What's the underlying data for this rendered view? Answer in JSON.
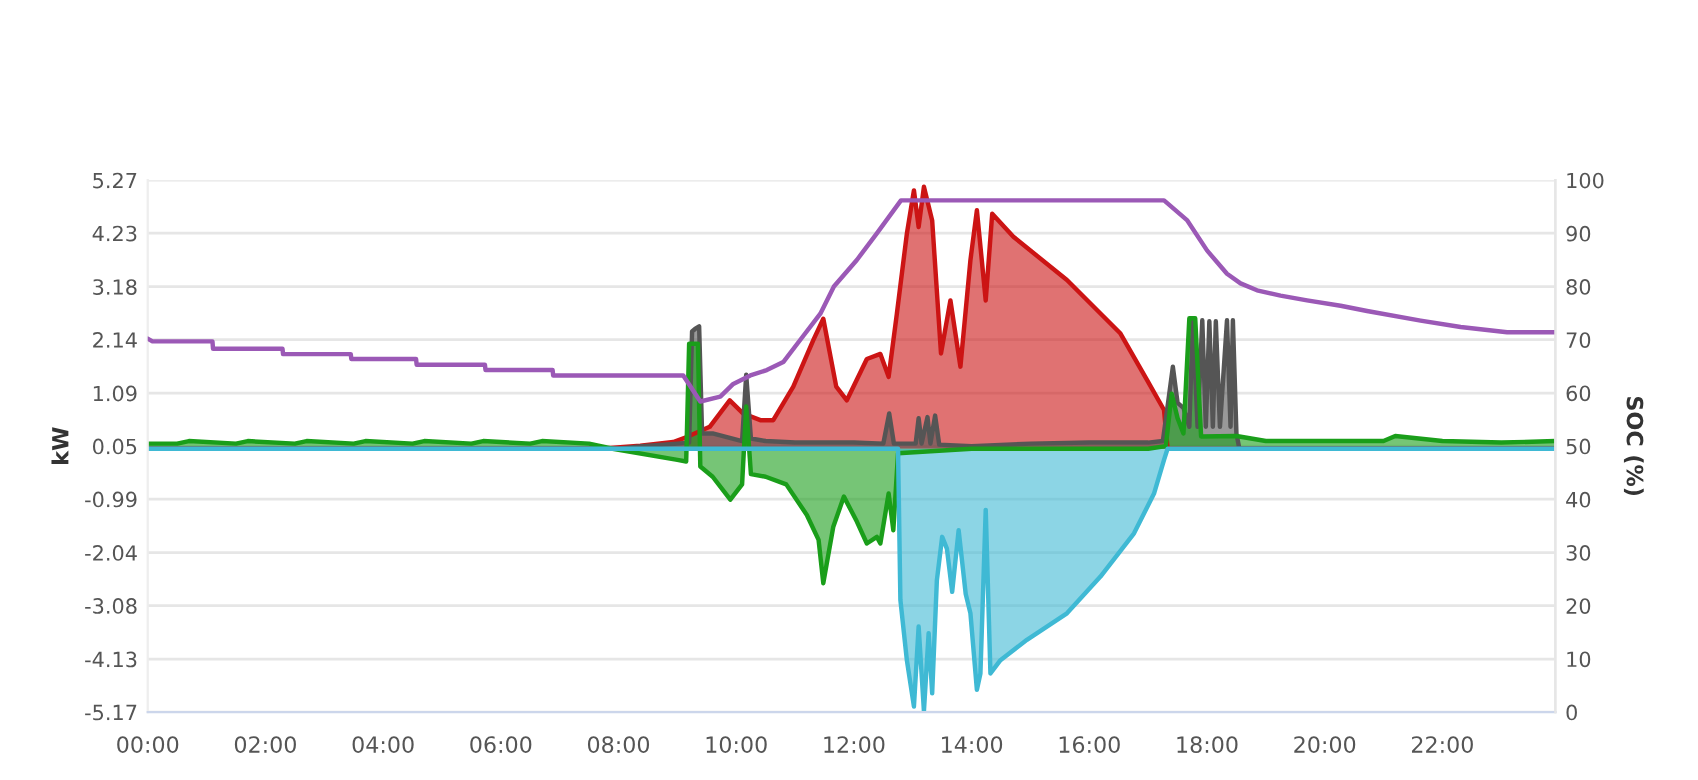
{
  "chart_data": {
    "type": "area",
    "ylabel": "kW",
    "y2label": "SOC (%)",
    "xlim": [
      0,
      23.92
    ],
    "xticks": [
      {
        "value": 0,
        "label": "00:00"
      },
      {
        "value": 2,
        "label": "02:00"
      },
      {
        "value": 4,
        "label": "04:00"
      },
      {
        "value": 6,
        "label": "06:00"
      },
      {
        "value": 8,
        "label": "08:00"
      },
      {
        "value": 10,
        "label": "10:00"
      },
      {
        "value": 12,
        "label": "12:00"
      },
      {
        "value": 14,
        "label": "14:00"
      },
      {
        "value": 16,
        "label": "16:00"
      },
      {
        "value": 18,
        "label": "18:00"
      },
      {
        "value": 20,
        "label": "20:00"
      },
      {
        "value": 22,
        "label": "22:00"
      }
    ],
    "ylim": [
      -5.17,
      5.27
    ],
    "yticks": [
      5.27,
      4.23,
      3.18,
      2.14,
      1.09,
      0.05,
      -0.99,
      -2.04,
      -3.08,
      -4.13,
      -5.17
    ],
    "y2lim": [
      0,
      100
    ],
    "y2ticks": [
      0,
      10,
      20,
      30,
      40,
      50,
      60,
      70,
      80,
      90,
      100
    ],
    "grid": "y",
    "legend": false,
    "series": [
      {
        "color": "#cc1414",
        "x": [
          0,
          7.69,
          8.37,
          8.93,
          9.16,
          9.55,
          9.89,
          10.12,
          10.41,
          10.63,
          10.97,
          11.31,
          11.48,
          11.7,
          11.88,
          12.22,
          12.45,
          12.59,
          12.73,
          12.9,
          13.02,
          13.1,
          13.19,
          13.33,
          13.48,
          13.64,
          13.81,
          13.98,
          14.09,
          14.24,
          14.35,
          14.71,
          15.62,
          16.53,
          16.98,
          17.27,
          17.33,
          23.92
        ],
        "values": [
          0,
          0,
          0.06,
          0.13,
          0.23,
          0.43,
          0.95,
          0.69,
          0.56,
          0.56,
          1.22,
          2.13,
          2.55,
          1.22,
          0.95,
          1.76,
          1.86,
          1.41,
          2.65,
          4.22,
          5.07,
          4.35,
          5.14,
          4.48,
          1.87,
          2.91,
          1.61,
          3.7,
          4.68,
          2.91,
          4.61,
          4.16,
          3.31,
          2.26,
          1.35,
          0.76,
          0,
          0
        ]
      },
      {
        "color": "#555555",
        "x": [
          0,
          8.0,
          8.4,
          9.0,
          9.2,
          9.25,
          9.3,
          9.37,
          9.42,
          9.6,
          10.1,
          10.17,
          10.25,
          10.5,
          11.0,
          12.0,
          12.5,
          12.6,
          12.68,
          13.05,
          13.1,
          13.15,
          13.25,
          13.3,
          13.38,
          13.45,
          14.0,
          15.0,
          16.0,
          17.0,
          17.25,
          17.35,
          17.42,
          17.5,
          17.6,
          17.7,
          17.76,
          17.84,
          17.92,
          17.98,
          18.04,
          18.1,
          18.15,
          18.22,
          18.34,
          18.4,
          18.44,
          18.5,
          18.55,
          23.92
        ],
        "values": [
          0,
          0,
          0.05,
          0.1,
          0.12,
          2.3,
          2.35,
          2.4,
          0.3,
          0.3,
          0.15,
          1.45,
          0.2,
          0.15,
          0.12,
          0.12,
          0.1,
          0.69,
          0.1,
          0.1,
          0.6,
          0.1,
          0.62,
          0.1,
          0.65,
          0.08,
          0.05,
          0.1,
          0.12,
          0.12,
          0.15,
          1.0,
          1.61,
          0.9,
          0.8,
          0.43,
          2.52,
          0.43,
          2.52,
          0.43,
          2.5,
          0.43,
          2.5,
          0.43,
          2.52,
          0.43,
          2.52,
          0.3,
          0,
          0
        ]
      },
      {
        "color": "#1a9e1a",
        "x": [
          0,
          0.5,
          0.7,
          1.5,
          1.7,
          2.5,
          2.7,
          3.5,
          3.7,
          4.5,
          4.7,
          5.5,
          5.7,
          6.5,
          6.7,
          7.5,
          7.9,
          9.0,
          9.15,
          9.2,
          9.35,
          9.39,
          9.6,
          9.9,
          10.1,
          10.17,
          10.25,
          10.5,
          10.85,
          11.2,
          11.4,
          11.48,
          11.65,
          11.83,
          12.05,
          12.22,
          12.39,
          12.45,
          12.59,
          12.67,
          12.75,
          14.0,
          17.0,
          17.3,
          17.4,
          17.5,
          17.6,
          17.7,
          17.8,
          17.9,
          18.5,
          19.0,
          20.0,
          21.0,
          21.2,
          22.0,
          23.0,
          23.92
        ],
        "values": [
          0.1,
          0.1,
          0.15,
          0.1,
          0.15,
          0.1,
          0.15,
          0.1,
          0.15,
          0.1,
          0.15,
          0.1,
          0.15,
          0.1,
          0.15,
          0.1,
          0.0,
          -0.22,
          -0.25,
          2.06,
          2.06,
          -0.35,
          -0.55,
          -1.0,
          -0.7,
          0.83,
          -0.5,
          -0.55,
          -0.7,
          -1.3,
          -1.79,
          -2.64,
          -1.53,
          -0.94,
          -1.43,
          -1.86,
          -1.73,
          -1.86,
          -0.88,
          -1.6,
          -0.09,
          0,
          0,
          0.05,
          1.08,
          0.6,
          0.3,
          2.56,
          2.56,
          0.24,
          0.25,
          0.15,
          0.15,
          0.15,
          0.25,
          0.15,
          0.12,
          0.15
        ]
      },
      {
        "color": "#3fb9d4",
        "x": [
          0,
          12.75,
          12.79,
          12.9,
          13.02,
          13.1,
          13.19,
          13.27,
          13.33,
          13.41,
          13.5,
          13.58,
          13.67,
          13.78,
          13.9,
          13.98,
          14.09,
          14.15,
          14.24,
          14.32,
          14.49,
          14.94,
          15.62,
          16.19,
          16.76,
          17.1,
          17.27,
          17.33,
          23.92
        ],
        "values": [
          0,
          0,
          -2.97,
          -4.15,
          -5.06,
          -3.49,
          -5.15,
          -3.62,
          -4.8,
          -2.58,
          -1.73,
          -1.96,
          -2.81,
          -1.6,
          -2.85,
          -3.23,
          -4.73,
          -4.41,
          -1.2,
          -4.41,
          -4.15,
          -3.75,
          -3.23,
          -2.51,
          -1.66,
          -0.88,
          -0.22,
          0,
          0
        ]
      },
      {
        "type": "line",
        "axis": "y2",
        "color": "#9b59b6",
        "x": [
          0,
          0.08,
          1.1,
          1.11,
          2.29,
          2.3,
          3.45,
          3.46,
          4.56,
          4.57,
          5.73,
          5.74,
          6.88,
          6.89,
          9.1,
          9.39,
          9.73,
          9.95,
          10.24,
          10.52,
          10.8,
          11.09,
          11.43,
          11.66,
          12.05,
          12.39,
          12.8,
          13.0,
          17.27,
          17.66,
          18.0,
          18.34,
          18.57,
          18.85,
          19.25,
          19.7,
          20.27,
          20.72,
          21.63,
          22.31,
          23.1,
          23.92
        ],
        "values": [
          70.2,
          69.7,
          69.7,
          68.3,
          68.3,
          67.3,
          67.3,
          66.4,
          66.4,
          65.3,
          65.3,
          64.3,
          64.3,
          63.3,
          63.3,
          58.4,
          59.3,
          61.7,
          63.3,
          64.3,
          65.8,
          70,
          74.9,
          80,
          85,
          90,
          96.2,
          96.2,
          96.2,
          92.5,
          86.8,
          82.4,
          80.6,
          79.3,
          78.3,
          77.4,
          76.4,
          75.4,
          73.6,
          72.4,
          71.4,
          71.4
        ]
      }
    ]
  }
}
